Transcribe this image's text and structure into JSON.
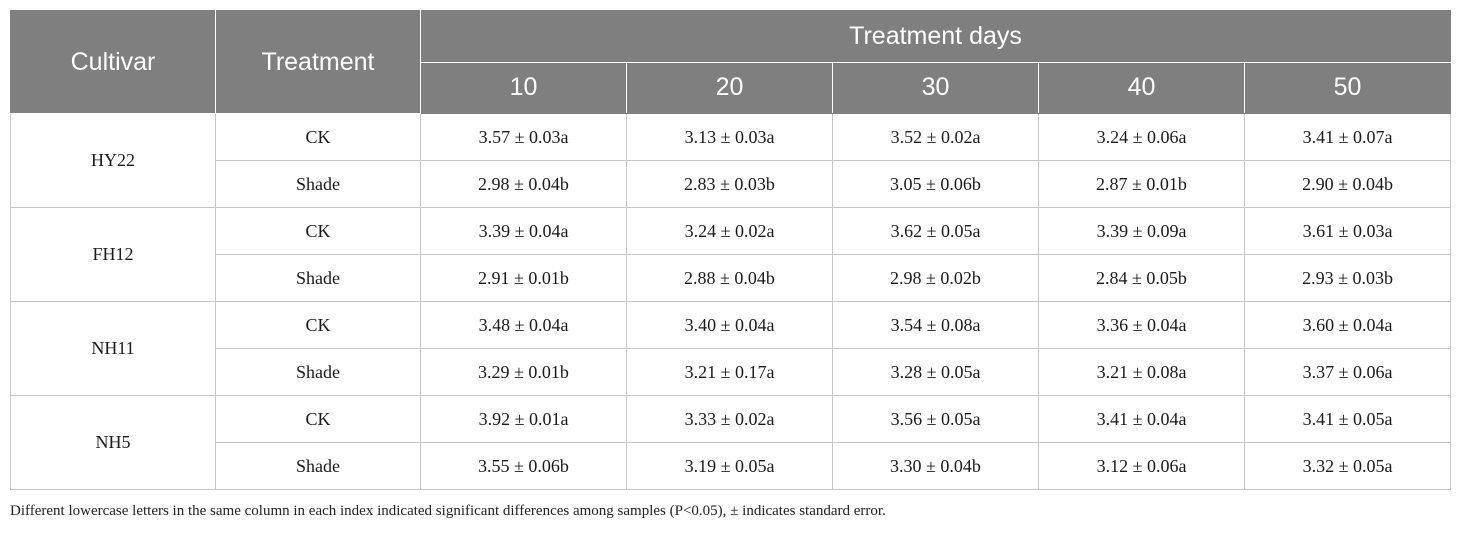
{
  "header": {
    "cultivar": "Cultivar",
    "treatment": "Treatment",
    "treatment_days": "Treatment days",
    "days": [
      "10",
      "20",
      "30",
      "40",
      "50"
    ]
  },
  "groups": [
    {
      "cultivar": "HY22",
      "rows": [
        {
          "treatment": "CK",
          "values": [
            "3.57 ± 0.03a",
            "3.13 ± 0.03a",
            "3.52 ± 0.02a",
            "3.24 ± 0.06a",
            "3.41 ± 0.07a"
          ]
        },
        {
          "treatment": "Shade",
          "values": [
            "2.98 ± 0.04b",
            "2.83 ± 0.03b",
            "3.05 ± 0.06b",
            "2.87 ± 0.01b",
            "2.90 ± 0.04b"
          ]
        }
      ]
    },
    {
      "cultivar": "FH12",
      "rows": [
        {
          "treatment": "CK",
          "values": [
            "3.39 ± 0.04a",
            "3.24 ± 0.02a",
            "3.62 ± 0.05a",
            "3.39 ± 0.09a",
            "3.61 ± 0.03a"
          ]
        },
        {
          "treatment": "Shade",
          "values": [
            "2.91 ± 0.01b",
            "2.88 ± 0.04b",
            "2.98 ± 0.02b",
            "2.84 ± 0.05b",
            "2.93 ± 0.03b"
          ]
        }
      ]
    },
    {
      "cultivar": "NH11",
      "rows": [
        {
          "treatment": "CK",
          "values": [
            "3.48 ± 0.04a",
            "3.40 ± 0.04a",
            "3.54 ± 0.08a",
            "3.36 ± 0.04a",
            "3.60 ± 0.04a"
          ]
        },
        {
          "treatment": "Shade",
          "values": [
            "3.29 ± 0.01b",
            "3.21 ± 0.17a",
            "3.28 ± 0.05a",
            "3.21 ± 0.08a",
            "3.37 ± 0.06a"
          ]
        }
      ]
    },
    {
      "cultivar": "NH5",
      "rows": [
        {
          "treatment": "CK",
          "values": [
            "3.92 ± 0.01a",
            "3.33 ± 0.02a",
            "3.56 ± 0.05a",
            "3.41 ± 0.04a",
            "3.41 ± 0.05a"
          ]
        },
        {
          "treatment": "Shade",
          "values": [
            "3.55 ± 0.06b",
            "3.19 ± 0.05a",
            "3.30 ± 0.04b",
            "3.12 ± 0.06a",
            "3.32 ± 0.05a"
          ]
        }
      ]
    }
  ],
  "footnote": "Different lowercase letters in the same column in each index indicated significant differences among samples (P<0.05), ± indicates standard error."
}
